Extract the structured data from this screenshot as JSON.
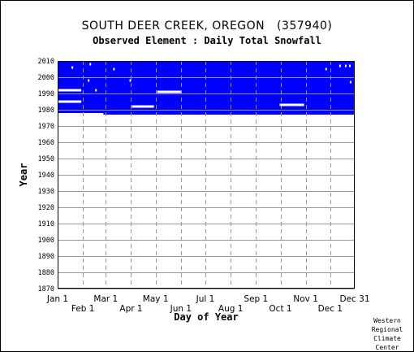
{
  "chart_data": {
    "type": "heatmap",
    "title": "SOUTH DEER CREEK, OREGON   (357940)",
    "subtitle": "Observed Element : Daily Total Snowfall",
    "xlabel": "Day of Year",
    "ylabel": "Year",
    "x_range_doy": [
      1,
      365
    ],
    "ylim": [
      1870,
      2010
    ],
    "yticks": [
      1870,
      1880,
      1890,
      1900,
      1910,
      1920,
      1930,
      1940,
      1950,
      1960,
      1970,
      1980,
      1990,
      2000,
      2010
    ],
    "xticks_top_row": [
      {
        "label": "Jan 1",
        "doy": 1
      },
      {
        "label": "Mar 1",
        "doy": 60
      },
      {
        "label": "May 1",
        "doy": 121
      },
      {
        "label": "Jul 1",
        "doy": 182
      },
      {
        "label": "Sep 1",
        "doy": 244
      },
      {
        "label": "Nov 1",
        "doy": 305
      },
      {
        "label": "Dec 31",
        "doy": 365
      }
    ],
    "xticks_bottom_row": [
      {
        "label": "Feb 1",
        "doy": 32
      },
      {
        "label": "Apr 1",
        "doy": 91
      },
      {
        "label": "Jun 1",
        "doy": 152
      },
      {
        "label": "Aug 1",
        "doy": 213
      },
      {
        "label": "Oct 1",
        "doy": 274
      },
      {
        "label": "Dec 1",
        "doy": 335
      }
    ],
    "grid": true,
    "data_color": "#0000ff",
    "missing_color": "#ffffff",
    "data_coverage": [
      {
        "from_year": 1977,
        "to_year": 2010,
        "from_doy": 1,
        "to_doy": 365,
        "status": "data"
      },
      {
        "from_year": 1977,
        "to_year": 1978,
        "from_doy": 1,
        "to_doy": 57,
        "status": "missing"
      }
    ],
    "missing_spans": [
      {
        "year": 1992,
        "from_doy": 1,
        "to_doy": 30
      },
      {
        "year": 1985,
        "from_doy": 1,
        "to_doy": 30
      },
      {
        "year": 1982,
        "from_doy": 92,
        "to_doy": 119
      },
      {
        "year": 1991,
        "from_doy": 123,
        "to_doy": 152
      },
      {
        "year": 1983,
        "from_doy": 273,
        "to_doy": 303
      },
      {
        "year": 2006,
        "from_doy": 18,
        "to_doy": 19
      },
      {
        "year": 2008,
        "from_doy": 40,
        "to_doy": 41
      },
      {
        "year": 1998,
        "from_doy": 38,
        "to_doy": 39
      },
      {
        "year": 1992,
        "from_doy": 47,
        "to_doy": 48
      },
      {
        "year": 2005,
        "from_doy": 69,
        "to_doy": 70
      },
      {
        "year": 1998,
        "from_doy": 89,
        "to_doy": 90
      },
      {
        "year": 2000,
        "from_doy": 0,
        "to_doy": 1
      },
      {
        "year": 2005,
        "from_doy": 329,
        "to_doy": 330
      },
      {
        "year": 2007,
        "from_doy": 346,
        "to_doy": 347
      },
      {
        "year": 2007,
        "from_doy": 353,
        "to_doy": 354
      },
      {
        "year": 2007,
        "from_doy": 358,
        "to_doy": 359
      },
      {
        "year": 1997,
        "from_doy": 359,
        "to_doy": 360
      }
    ]
  },
  "credit": [
    "Western",
    "Regional",
    "Climate",
    "Center"
  ]
}
